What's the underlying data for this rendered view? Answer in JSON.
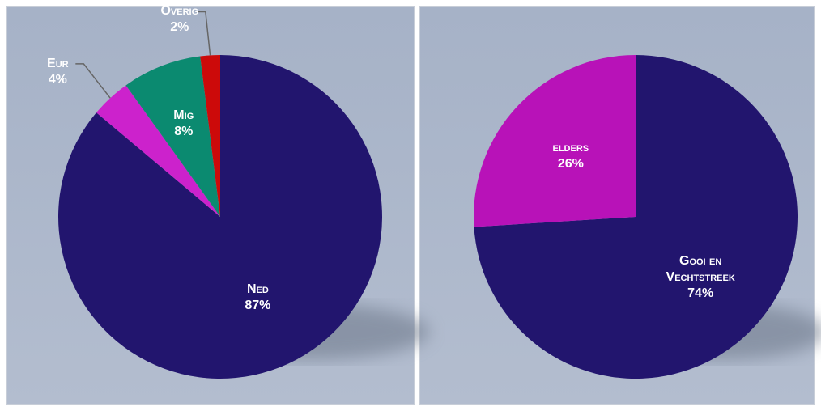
{
  "chart_data": [
    {
      "type": "pie",
      "categories": [
        "Ned",
        "Eur",
        "Mig",
        "Overig"
      ],
      "values": [
        87,
        4,
        8,
        2
      ],
      "value_labels": [
        "87%",
        "4%",
        "8%",
        "2%"
      ],
      "colors": [
        "#22156e",
        "#cc22cc",
        "#0b8a70",
        "#cc0a0a"
      ]
    },
    {
      "type": "pie",
      "categories": [
        "Gooi en Vechtstreek",
        "elders"
      ],
      "values": [
        74,
        26
      ],
      "value_labels": [
        "74%",
        "26%"
      ],
      "colors": [
        "#22156e",
        "#b812b8"
      ]
    }
  ]
}
